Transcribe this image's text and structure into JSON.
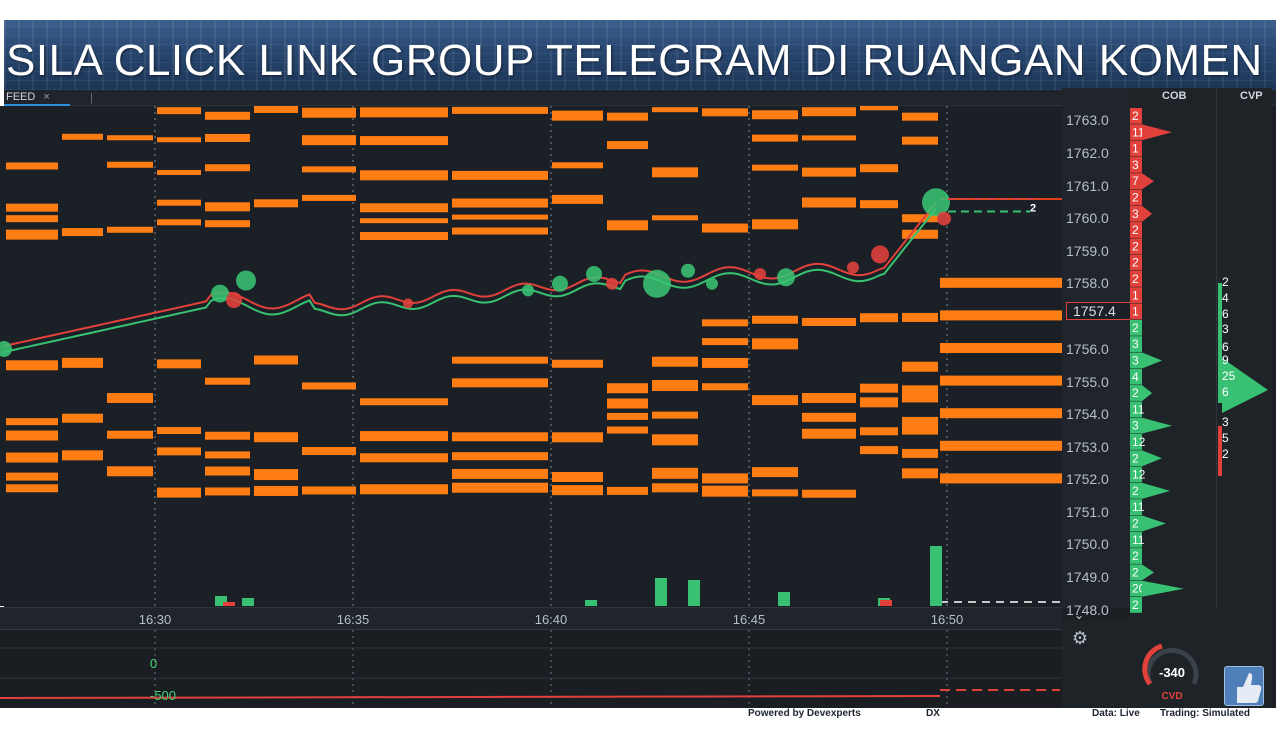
{
  "banner": {
    "text": "SILA CLICK LINK GROUP TELEGRAM DI RUANGAN KOMEN"
  },
  "tab": {
    "label": "FEED",
    "close": "×",
    "separator": "|"
  },
  "time_axis": {
    "labels": [
      "16:30",
      "16:35",
      "16:40",
      "16:45",
      "16:50"
    ]
  },
  "price_axis": {
    "labels": [
      "1763.0",
      "1762.0",
      "1761.0",
      "1760.0",
      "1759.0",
      "1758.0",
      "1757.4",
      "1756.0",
      "1755.0",
      "1754.0",
      "1753.0",
      "1752.0",
      "1751.0",
      "1750.0",
      "1749.0",
      "1748.0"
    ],
    "current_price": "1757.4"
  },
  "marker": {
    "qty": "2"
  },
  "panels": {
    "cob": "COB",
    "cvp": "CVP"
  },
  "cob_numbers": [
    "2",
    "11",
    "1",
    "3",
    "7",
    "2",
    "3",
    "2",
    "2",
    "2",
    "2",
    "1",
    "1",
    "2",
    "3",
    "3",
    "4",
    "2",
    "11",
    "3",
    "12",
    "2",
    "12",
    "2",
    "11",
    "2",
    "11",
    "2",
    "2",
    "20",
    "2"
  ],
  "cvp_numbers": [
    "2",
    "4",
    "6",
    "3",
    "6",
    "9",
    "25",
    "6",
    "3",
    "5",
    "2"
  ],
  "indicator": {
    "zero_label": "0",
    "low_label": "-500"
  },
  "cvd": {
    "value": "-340",
    "label": "CVD"
  },
  "footer": {
    "powered": "Powered by Devexperts",
    "dx": "DX",
    "data": "Data: Live",
    "trading": "Trading: Simulated"
  },
  "colors": {
    "bid": "#ff7d12",
    "ask": "#e0401c",
    "up": "#38c172",
    "down": "#e2413b",
    "background": "#1b2026"
  },
  "icons": {
    "settings": "gear-icon",
    "collapse": "chevron-down-icon",
    "logo": "thumbs-up-logo-icon"
  }
}
